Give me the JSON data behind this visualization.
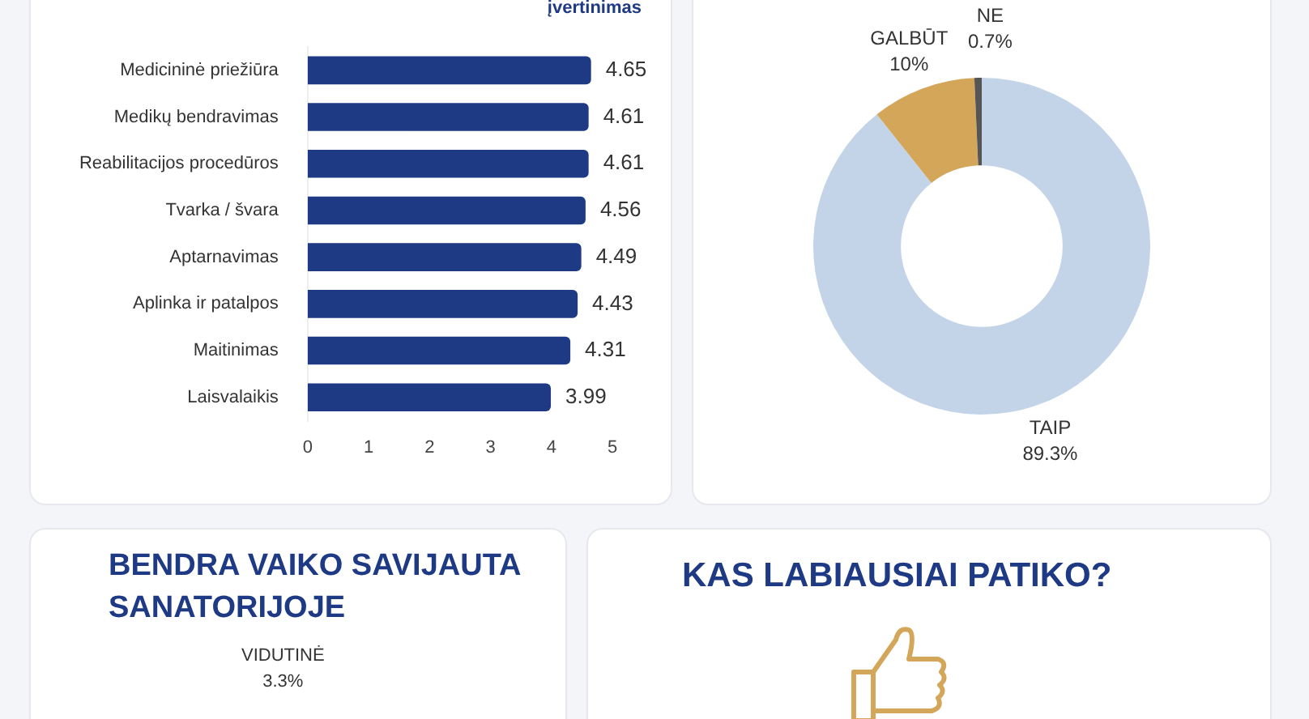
{
  "chart_data": [
    {
      "type": "bar",
      "orientation": "horizontal",
      "categories": [
        "Medicininė priežiūra",
        "Medikų bendravimas",
        "Reabilitacijos procedūros",
        "Tvarka / švara",
        "Aptarnavimas",
        "Aplinka ir patalpos",
        "Maitinimas",
        "Laisvalaikis"
      ],
      "values": [
        4.65,
        4.61,
        4.61,
        4.56,
        4.49,
        4.43,
        4.31,
        3.99
      ],
      "color": "#1e3a85",
      "xlim": [
        0,
        5
      ],
      "xticks": [
        0,
        1,
        2,
        3,
        4,
        5
      ],
      "grid": false,
      "data_labels": true,
      "legend": false,
      "annotations": [
        "įvertinimas"
      ]
    },
    {
      "type": "donut",
      "categories": [
        "TAIP",
        "GALBŪT",
        "NE"
      ],
      "values": [
        89.3,
        10,
        0.7
      ],
      "colors": [
        "#c3d4e8",
        "#d4a65a",
        "#555555"
      ],
      "value_labels": [
        "89.3%",
        "10%",
        "0.7%"
      ],
      "legend": false
    },
    {
      "type": "other",
      "title": "BENDRA VAIKO SAVIJAUTA SANATORIJOJE",
      "annotations": [
        "VIDUTINĖ",
        "3.3%"
      ]
    },
    {
      "type": "other",
      "title": "KAS LABIAUSIAI PATIKO?"
    }
  ]
}
